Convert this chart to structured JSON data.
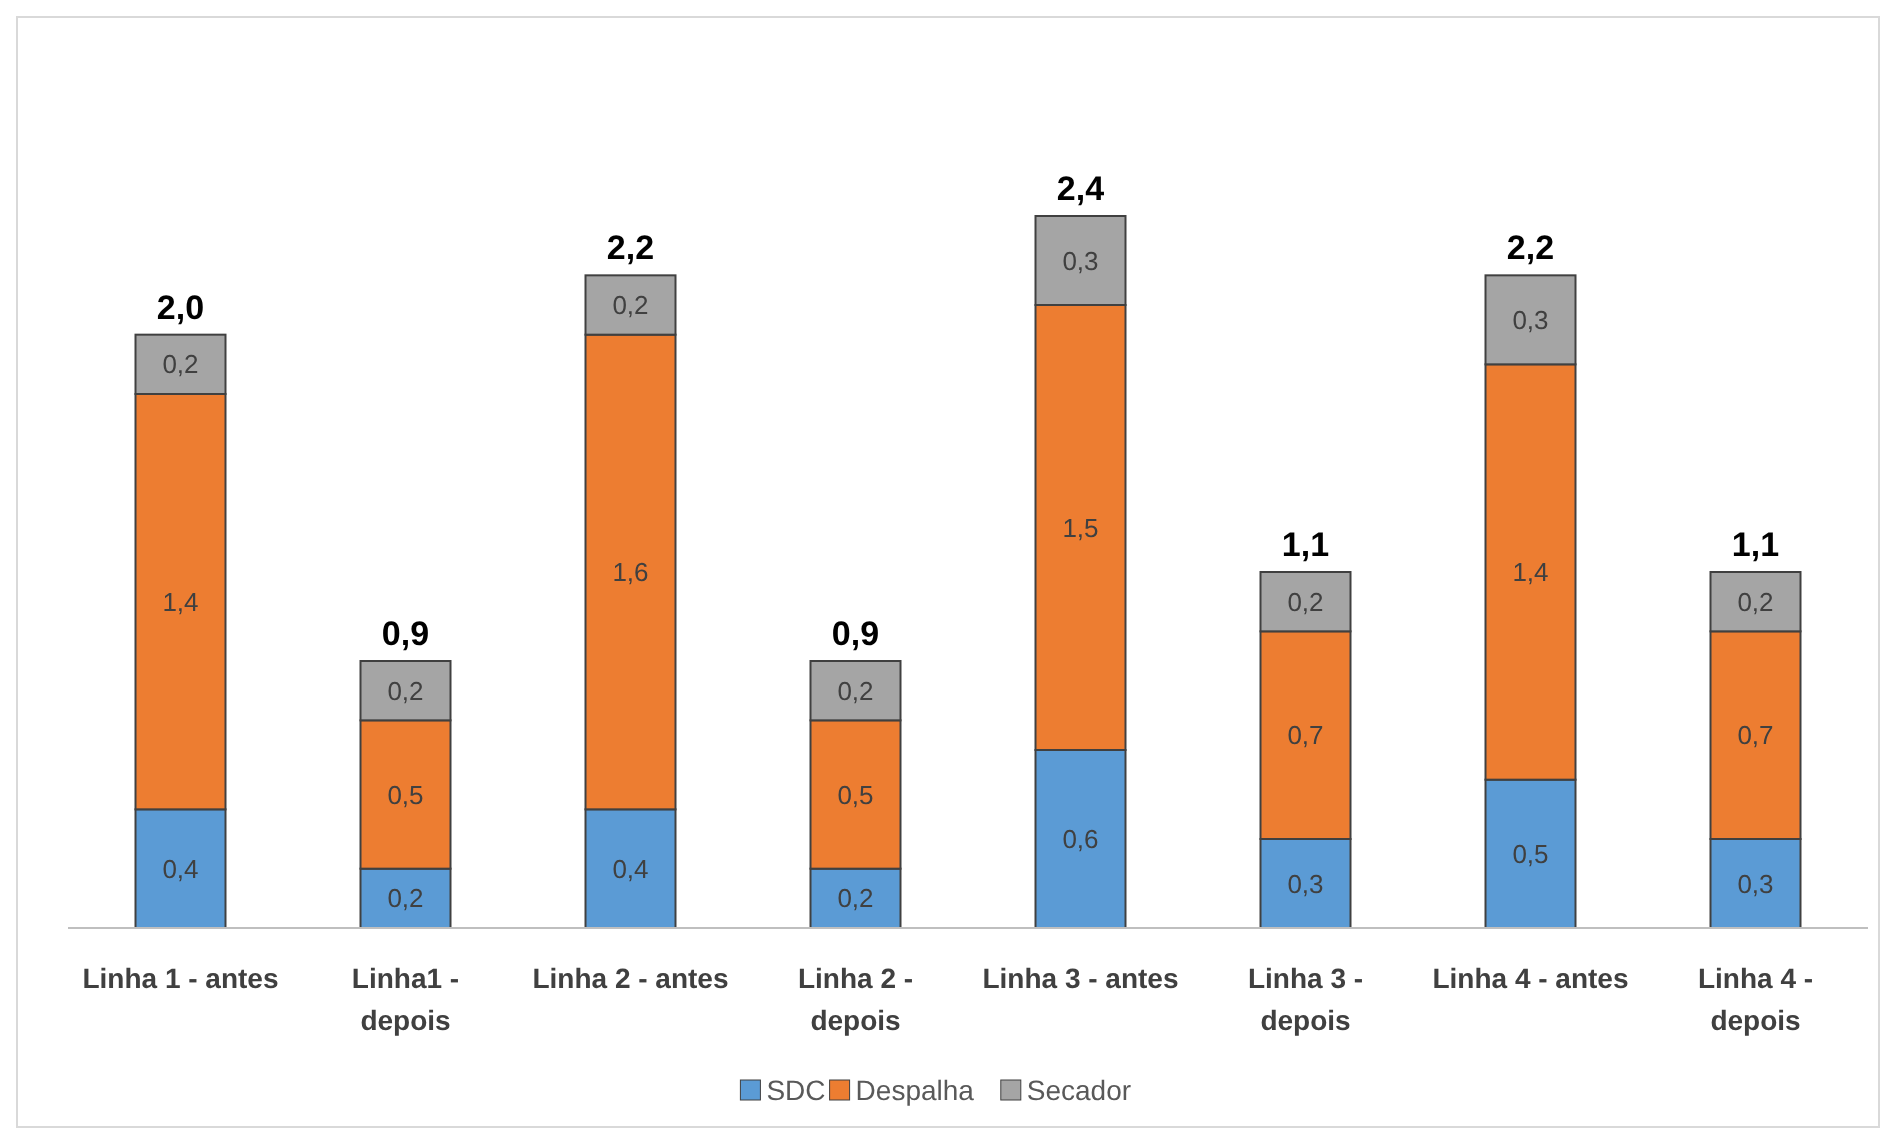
{
  "chart_data": {
    "type": "bar",
    "stacked": true,
    "categories": [
      "Linha 1 - antes",
      "Linha1 - depois",
      "Linha 2 - antes",
      "Linha 2 - depois",
      "Linha 3 - antes",
      "Linha 3 - depois",
      "Linha 4 - antes",
      "Linha 4 - depois"
    ],
    "series": [
      {
        "name": "SDC",
        "color": "#5b9bd5",
        "values": [
          0.4,
          0.2,
          0.4,
          0.2,
          0.6,
          0.3,
          0.5,
          0.3
        ],
        "value_labels": [
          "0,4",
          "0,2",
          "0,4",
          "0,2",
          "0,6",
          "0,3",
          "0,5",
          "0,3"
        ]
      },
      {
        "name": "Despalha",
        "color": "#ed7d31",
        "values": [
          1.4,
          0.5,
          1.6,
          0.5,
          1.5,
          0.7,
          1.4,
          0.7
        ],
        "value_labels": [
          "1,4",
          "0,5",
          "1,6",
          "0,5",
          "1,5",
          "0,7",
          "1,4",
          "0,7"
        ]
      },
      {
        "name": "Secador",
        "color": "#a5a5a5",
        "values": [
          0.2,
          0.2,
          0.2,
          0.2,
          0.3,
          0.2,
          0.3,
          0.2
        ],
        "value_labels": [
          "0,2",
          "0,2",
          "0,2",
          "0,2",
          "0,3",
          "0,2",
          "0,3",
          "0,2"
        ]
      }
    ],
    "totals": [
      "2,0",
      "0,9",
      "2,2",
      "0,9",
      "2,4",
      "1,1",
      "2,2",
      "1,1"
    ],
    "legend": "bottom",
    "grid": false
  }
}
